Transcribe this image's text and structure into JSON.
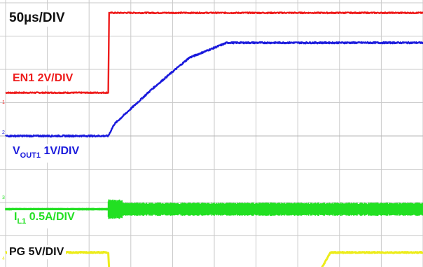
{
  "timebase": "50µs/DIV",
  "traces": {
    "en1": {
      "name": "EN1",
      "scale": "2V/DIV",
      "color": "#ee1c1c",
      "marker": "1"
    },
    "vout1": {
      "name": "V",
      "sub": "OUT1",
      "scale": "1V/DIV",
      "color": "#1a1adc",
      "marker": "2"
    },
    "il1": {
      "name": "I",
      "sub": "L1",
      "scale": "0.5A/DIV",
      "color": "#22e022",
      "marker": "3"
    },
    "pg": {
      "name": "PG",
      "scale": "5V/DIV",
      "color": "#ecec1a",
      "marker": "4"
    }
  },
  "chart_data": {
    "type": "line",
    "xunit": "µs",
    "xdiv": 50,
    "xlim": [
      0,
      500
    ],
    "ylim": [
      -4,
      4
    ],
    "grid": true,
    "series": [
      {
        "name": "EN1 2V/DIV",
        "color": "#ee1c1c",
        "x": [
          0,
          123,
          124,
          500
        ],
        "y": [
          1.3,
          1.3,
          3.7,
          3.7
        ]
      },
      {
        "name": "VOUT1 1V/DIV",
        "color": "#1a1adc",
        "x": [
          0,
          123,
          130,
          175,
          220,
          265,
          500
        ],
        "y": [
          0.0,
          0.0,
          0.35,
          1.4,
          2.35,
          2.8,
          2.8
        ]
      },
      {
        "name": "IL1 0.5A/DIV",
        "color": "#22e022",
        "x": [
          0,
          123,
          500
        ],
        "y": [
          -2.2,
          -2.2,
          -2.2
        ],
        "ripple": [
          {
            "x": [
              123,
              140
            ],
            "amplitude": 0.3
          },
          {
            "x": [
              140,
              500
            ],
            "amplitude": 0.2
          }
        ]
      },
      {
        "name": "PG 5V/DIV",
        "color": "#ecec1a",
        "x": [
          0,
          123,
          124,
          378,
          389,
          500
        ],
        "y": [
          -3.5,
          -3.5,
          -4.0,
          -4.0,
          -3.5,
          -3.5
        ]
      }
    ]
  }
}
